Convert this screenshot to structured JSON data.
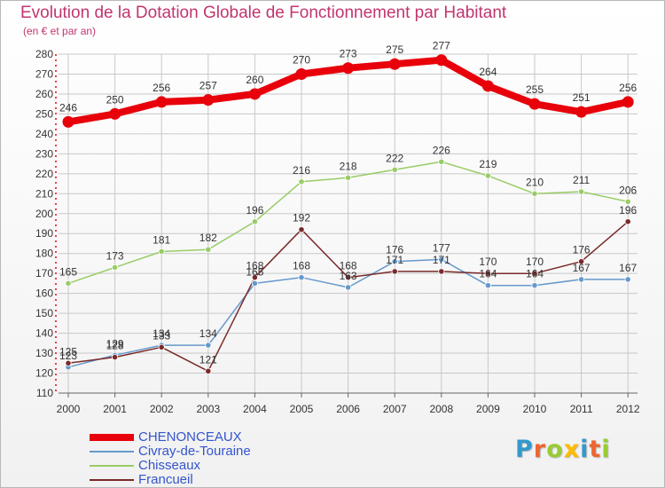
{
  "chart_data": {
    "type": "line",
    "title": "Evolution de la Dotation Globale de Fonctionnement par Habitant",
    "subtitle": "(en € et par an)",
    "x": [
      "2000",
      "2001",
      "2002",
      "2003",
      "2004",
      "2005",
      "2006",
      "2007",
      "2008",
      "2009",
      "2010",
      "2011",
      "2012"
    ],
    "ylim": [
      110,
      280
    ],
    "yticks": [
      110,
      120,
      130,
      140,
      150,
      160,
      170,
      180,
      190,
      200,
      210,
      220,
      230,
      240,
      250,
      260,
      270,
      280
    ],
    "grid": true,
    "legend_position": "bottom-left",
    "series": [
      {
        "name": "CHENONCEAUX",
        "color": "#e8000b",
        "values": [
          246,
          250,
          256,
          257,
          260,
          270,
          273,
          275,
          277,
          264,
          255,
          251,
          256
        ]
      },
      {
        "name": "Civray-de-Touraine",
        "color": "#6699cc",
        "values": [
          123,
          129,
          134,
          134,
          165,
          168,
          163,
          176,
          177,
          164,
          164,
          167,
          167
        ]
      },
      {
        "name": "Chisseaux",
        "color": "#99cc66",
        "values": [
          165,
          173,
          181,
          182,
          196,
          216,
          218,
          222,
          226,
          219,
          210,
          211,
          206
        ]
      },
      {
        "name": "Francueil",
        "color": "#7a2a2a",
        "values": [
          125,
          128,
          133,
          121,
          168,
          192,
          168,
          171,
          171,
          170,
          170,
          176,
          196
        ]
      }
    ]
  },
  "logo": {
    "text": "Proxiti",
    "colors": [
      "#3399cc",
      "#ee6633",
      "#99cc33",
      "#ffbb00",
      "#3399cc",
      "#ee6633",
      "#99cc33"
    ]
  }
}
